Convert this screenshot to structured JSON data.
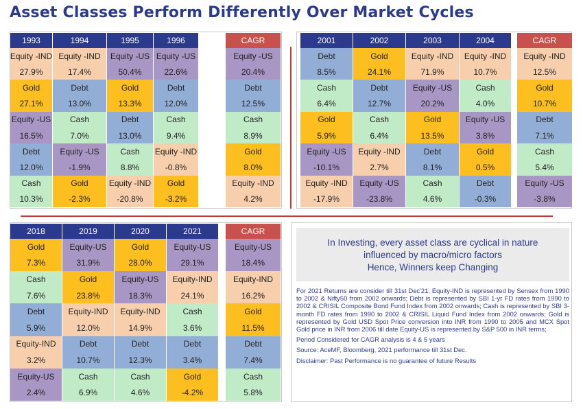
{
  "title": "Asset Classes Perform Differently Over Market Cycles",
  "colors": {
    "header": "#2c3a8e",
    "cagr_header": "#c8504d",
    "Equity-IND": "#f8cfad",
    "Equity-US": "#a896c4",
    "Gold": "#fdbf1f",
    "Debt": "#93aed6",
    "Cash": "#c1ebc7",
    "divider": "#c23b36"
  },
  "chart_data": [
    {
      "type": "table",
      "columns": [
        "1993",
        "1994",
        "1995",
        "1996"
      ],
      "rows": [
        [
          {
            "asset": "Equity -IND",
            "cls": "Equity-IND",
            "ret": "27.9%"
          },
          {
            "asset": "Equity -IND",
            "cls": "Equity-IND",
            "ret": "17.4%"
          },
          {
            "asset": "Equity -US",
            "cls": "Equity-US",
            "ret": "50.4%"
          },
          {
            "asset": "Equity -US",
            "cls": "Equity-US",
            "ret": "22.6%"
          }
        ],
        [
          {
            "asset": "Gold",
            "cls": "Gold",
            "ret": "27.1%"
          },
          {
            "asset": "Debt",
            "cls": "Debt",
            "ret": "13.0%"
          },
          {
            "asset": "Gold",
            "cls": "Gold",
            "ret": "13.3%"
          },
          {
            "asset": "Debt",
            "cls": "Debt",
            "ret": "12.0%"
          }
        ],
        [
          {
            "asset": "Equity -US",
            "cls": "Equity-US",
            "ret": "16.5%"
          },
          {
            "asset": "Cash",
            "cls": "Cash",
            "ret": "7.0%"
          },
          {
            "asset": "Debt",
            "cls": "Debt",
            "ret": "13.0%"
          },
          {
            "asset": "Cash",
            "cls": "Cash",
            "ret": "9.4%"
          }
        ],
        [
          {
            "asset": "Debt",
            "cls": "Debt",
            "ret": "12.0%"
          },
          {
            "asset": "Equity -US",
            "cls": "Equity-US",
            "ret": "-1.9%"
          },
          {
            "asset": "Cash",
            "cls": "Cash",
            "ret": "8.8%"
          },
          {
            "asset": "Equity -IND",
            "cls": "Equity-IND",
            "ret": "-0.8%"
          }
        ],
        [
          {
            "asset": "Cash",
            "cls": "Cash",
            "ret": "10.3%"
          },
          {
            "asset": "Gold",
            "cls": "Gold",
            "ret": "-2.3%"
          },
          {
            "asset": "Equity -IND",
            "cls": "Equity-IND",
            "ret": "-20.8%"
          },
          {
            "asset": "Gold",
            "cls": "Gold",
            "ret": "-3.2%"
          }
        ]
      ],
      "cagr_label": "CAGR",
      "cagr": [
        {
          "asset": "Equity -US",
          "cls": "Equity-US",
          "ret": "20.4%"
        },
        {
          "asset": "Debt",
          "cls": "Debt",
          "ret": "12.5%"
        },
        {
          "asset": "Cash",
          "cls": "Cash",
          "ret": "8.9%"
        },
        {
          "asset": "Gold",
          "cls": "Gold",
          "ret": "8.0%"
        },
        {
          "asset": "Equity -IND",
          "cls": "Equity-IND",
          "ret": "4.2%"
        }
      ]
    },
    {
      "type": "table",
      "columns": [
        "2001",
        "2002",
        "2003",
        "2004"
      ],
      "rows": [
        [
          {
            "asset": "Debt",
            "cls": "Debt",
            "ret": "8.5%"
          },
          {
            "asset": "Gold",
            "cls": "Gold",
            "ret": "24.1%"
          },
          {
            "asset": "Equity -IND",
            "cls": "Equity-IND",
            "ret": "71.9%"
          },
          {
            "asset": "Equity -IND",
            "cls": "Equity-IND",
            "ret": "10.7%"
          }
        ],
        [
          {
            "asset": "Cash",
            "cls": "Cash",
            "ret": "6.4%"
          },
          {
            "asset": "Debt",
            "cls": "Debt",
            "ret": "12.7%"
          },
          {
            "asset": "Equity -US",
            "cls": "Equity-US",
            "ret": "20.2%"
          },
          {
            "asset": "Cash",
            "cls": "Cash",
            "ret": "4.0%"
          }
        ],
        [
          {
            "asset": "Gold",
            "cls": "Gold",
            "ret": "5.9%"
          },
          {
            "asset": "Cash",
            "cls": "Cash",
            "ret": "6.4%"
          },
          {
            "asset": "Gold",
            "cls": "Gold",
            "ret": "13.5%"
          },
          {
            "asset": "Equity -US",
            "cls": "Equity-US",
            "ret": "3.8%"
          }
        ],
        [
          {
            "asset": "Equity -US",
            "cls": "Equity-US",
            "ret": "-10.1%"
          },
          {
            "asset": "Equity -IND",
            "cls": "Equity-IND",
            "ret": "2.7%"
          },
          {
            "asset": "Debt",
            "cls": "Debt",
            "ret": "8.1%"
          },
          {
            "asset": "Gold",
            "cls": "Gold",
            "ret": "0.5%"
          }
        ],
        [
          {
            "asset": "Equity -IND",
            "cls": "Equity-IND",
            "ret": "-17.9%"
          },
          {
            "asset": "Equity -US",
            "cls": "Equity-US",
            "ret": "-23.8%"
          },
          {
            "asset": "Cash",
            "cls": "Cash",
            "ret": "4.6%"
          },
          {
            "asset": "Debt",
            "cls": "Debt",
            "ret": "-0.3%"
          }
        ]
      ],
      "cagr_label": "CAGR",
      "cagr": [
        {
          "asset": "Equity -IND",
          "cls": "Equity-IND",
          "ret": "12.5%"
        },
        {
          "asset": "Gold",
          "cls": "Gold",
          "ret": "10.7%"
        },
        {
          "asset": "Debt",
          "cls": "Debt",
          "ret": "7.1%"
        },
        {
          "asset": "Cash",
          "cls": "Cash",
          "ret": "5.4%"
        },
        {
          "asset": "Equity -US",
          "cls": "Equity-US",
          "ret": "-3.8%"
        }
      ]
    },
    {
      "type": "table",
      "columns": [
        "2018",
        "2019",
        "2020",
        "2021"
      ],
      "rows": [
        [
          {
            "asset": "Gold",
            "cls": "Gold",
            "ret": "7.3%"
          },
          {
            "asset": "Equity-US",
            "cls": "Equity-US",
            "ret": "31.9%"
          },
          {
            "asset": "Gold",
            "cls": "Gold",
            "ret": "28.0%"
          },
          {
            "asset": "Equity-US",
            "cls": "Equity-US",
            "ret": "29.1%"
          }
        ],
        [
          {
            "asset": "Cash",
            "cls": "Cash",
            "ret": "7.6%"
          },
          {
            "asset": "Gold",
            "cls": "Gold",
            "ret": "23.8%"
          },
          {
            "asset": "Equity-US",
            "cls": "Equity-US",
            "ret": "18.3%"
          },
          {
            "asset": "Equity-IND",
            "cls": "Equity-IND",
            "ret": "24.1%"
          }
        ],
        [
          {
            "asset": "Debt",
            "cls": "Debt",
            "ret": "5.9%"
          },
          {
            "asset": "Equity-IND",
            "cls": "Equity-IND",
            "ret": "12.0%"
          },
          {
            "asset": "Equity-IND",
            "cls": "Equity-IND",
            "ret": "14.9%"
          },
          {
            "asset": "Cash",
            "cls": "Cash",
            "ret": "3.6%"
          }
        ],
        [
          {
            "asset": "Equity-IND",
            "cls": "Equity-IND",
            "ret": "3.2%"
          },
          {
            "asset": "Debt",
            "cls": "Debt",
            "ret": "10.7%"
          },
          {
            "asset": "Debt",
            "cls": "Debt",
            "ret": "12.3%"
          },
          {
            "asset": "Debt",
            "cls": "Debt",
            "ret": "3.4%"
          }
        ],
        [
          {
            "asset": "Equity-US",
            "cls": "Equity-US",
            "ret": "2.4%"
          },
          {
            "asset": "Cash",
            "cls": "Cash",
            "ret": "6.9%"
          },
          {
            "asset": "Cash",
            "cls": "Cash",
            "ret": "4.6%"
          },
          {
            "asset": "Gold",
            "cls": "Gold",
            "ret": "-4.2%"
          }
        ]
      ],
      "cagr_label": "CAGR",
      "cagr": [
        {
          "asset": "Equity-US",
          "cls": "Equity-US",
          "ret": "18.4%"
        },
        {
          "asset": "Equity-IND",
          "cls": "Equity-IND",
          "ret": "16.2%"
        },
        {
          "asset": "Gold",
          "cls": "Gold",
          "ret": "11.5%"
        },
        {
          "asset": "Debt",
          "cls": "Debt",
          "ret": "7.4%"
        },
        {
          "asset": "Cash",
          "cls": "Cash",
          "ret": "5.8%"
        }
      ]
    }
  ],
  "info": {
    "line1": "In Investing, every asset class are cyclical in nature",
    "line2": "influenced by macro/micro factors",
    "line3": "Hence, Winners keep Changing"
  },
  "notes": {
    "methodology": "For 2021 Returns are consider till 31st Dec'21. Equity-IND is represented by Sensex from 1990 to 2002 & Nifty50 from 2002 onwards; Debt is represented by SBI 1-yr FD rates from 1990 to 2002 & CRISIL Composite Bond Fund Index from 2002 onwards; Cash is represented by SBI 3-month FD rates from 1990 to 2002 & CRISIL Liquid Fund Index from 2002 onwards; Gold is represented by Gold USD Spot Price conversion into INR from 1990 to 2005 and MCX Spot Gold price in INR from 2006 till date Equity-US is represented by S&P 500 in INR terms;",
    "period": "Period Considered for CAGR analysis is 4 & 5 years",
    "source": "Source: AceMF, Bloomberg, 2021 performance till 31st Dec.",
    "disclaimer": "Disclaimer: Past Performance is no guarantee of future Results"
  }
}
